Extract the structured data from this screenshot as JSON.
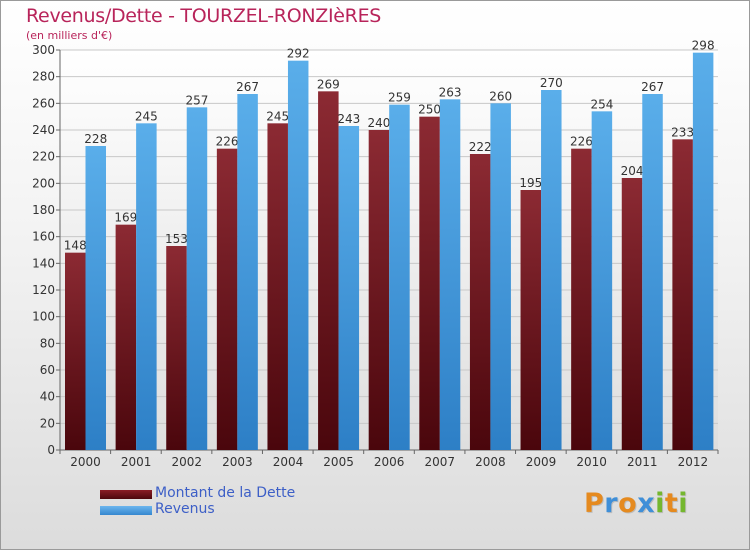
{
  "title": "Revenus/Dette - TOURZEL-RONZIèRES",
  "subtitle": "(en milliers d'€)",
  "chart_data": {
    "type": "bar",
    "title": "Revenus/Dette - TOURZEL-RONZIèRES",
    "subtitle": "(en milliers d'€)",
    "categories": [
      "2000",
      "2001",
      "2002",
      "2003",
      "2004",
      "2005",
      "2006",
      "2007",
      "2008",
      "2009",
      "2010",
      "2011",
      "2012"
    ],
    "series": [
      {
        "name": "Montant de la Dette",
        "color": "#7a1c24",
        "values": [
          148,
          169,
          153,
          226,
          245,
          269,
          240,
          250,
          222,
          195,
          226,
          204,
          233
        ]
      },
      {
        "name": "Revenus",
        "color": "#4d9fe0",
        "values": [
          228,
          245,
          257,
          267,
          292,
          243,
          259,
          263,
          260,
          270,
          254,
          267,
          298
        ]
      }
    ],
    "ylim": [
      0,
      300
    ],
    "ytick_step": 20,
    "grid": true,
    "legend_position": "bottom-left"
  },
  "legend": [
    {
      "label": "Montant de la Dette",
      "color": "#6b0f17"
    },
    {
      "label": "Revenus",
      "color": "#4d9fe0"
    }
  ],
  "logo": {
    "letters": [
      "P",
      "r",
      "o",
      "x",
      "i",
      "t",
      "i"
    ],
    "colors": [
      "#e58a1f",
      "#3f8fd8",
      "#e58a1f",
      "#3f8fd8",
      "#74b72e",
      "#e58a1f",
      "#74b72e"
    ]
  }
}
